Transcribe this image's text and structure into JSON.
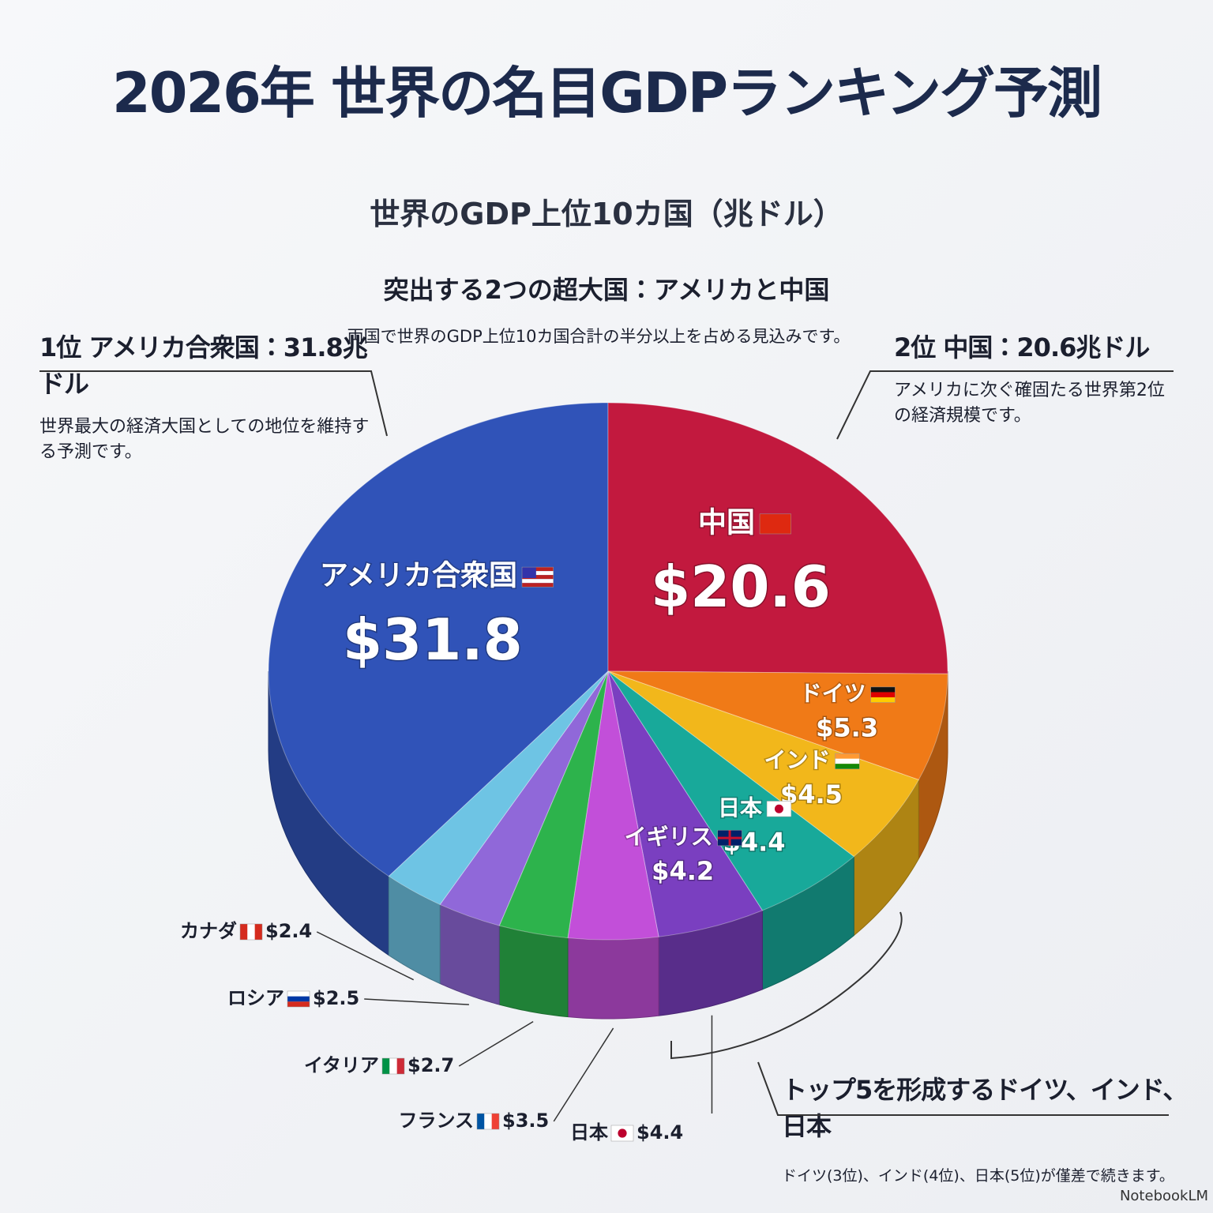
{
  "header": {
    "title": "2026年 世界の名目GDPランキング予測",
    "subtitle": "世界のGDP上位10カ国（兆ドル）"
  },
  "highlight": {
    "title": "突出する2つの超大国：アメリカと中国",
    "text": "両国で世界のGDP上位10カ国合計の半分以上を占める見込みです。"
  },
  "callouts": [
    {
      "title": "1位 アメリカ合衆国：31.8兆ドル",
      "text": "世界最大の経済大国としての地位を維持する予測です。"
    },
    {
      "title": "2位 中国：20.6兆ドル",
      "text": "アメリカに次ぐ確固たる世界第2位の経済規模です。"
    },
    {
      "title": "トップ5を形成するドイツ、インド、日本",
      "text": "ドイツ(3位)、インド(4位)、日本(5位)が僅差で続きます。"
    }
  ],
  "chart_data": {
    "type": "pie",
    "categories": [
      "アメリカ合衆国",
      "中国",
      "ドイツ",
      "インド",
      "日本",
      "イギリス",
      "フランス",
      "イタリア",
      "ロシア",
      "カナダ"
    ],
    "values": [
      31.8,
      20.6,
      5.3,
      4.5,
      4.4,
      4.2,
      3.5,
      2.7,
      2.5,
      2.4
    ],
    "value_labels": [
      "$31.8",
      "$20.6",
      "$5.3",
      "$4.5",
      "$4.4",
      "$4.2",
      "$3.5",
      "$2.7",
      "$2.5",
      "$2.4"
    ],
    "colors": [
      "#3053b8",
      "#c2193e",
      "#f07a17",
      "#f2b71b",
      "#18a99a",
      "#7a3fc0",
      "#c24fd9",
      "#2db34c",
      "#9068d9",
      "#6ec4e4"
    ],
    "annotations": [
      {
        "label": "日本",
        "value_label": "$4.4"
      }
    ]
  },
  "footer": {
    "brand": "NotebookLM"
  }
}
